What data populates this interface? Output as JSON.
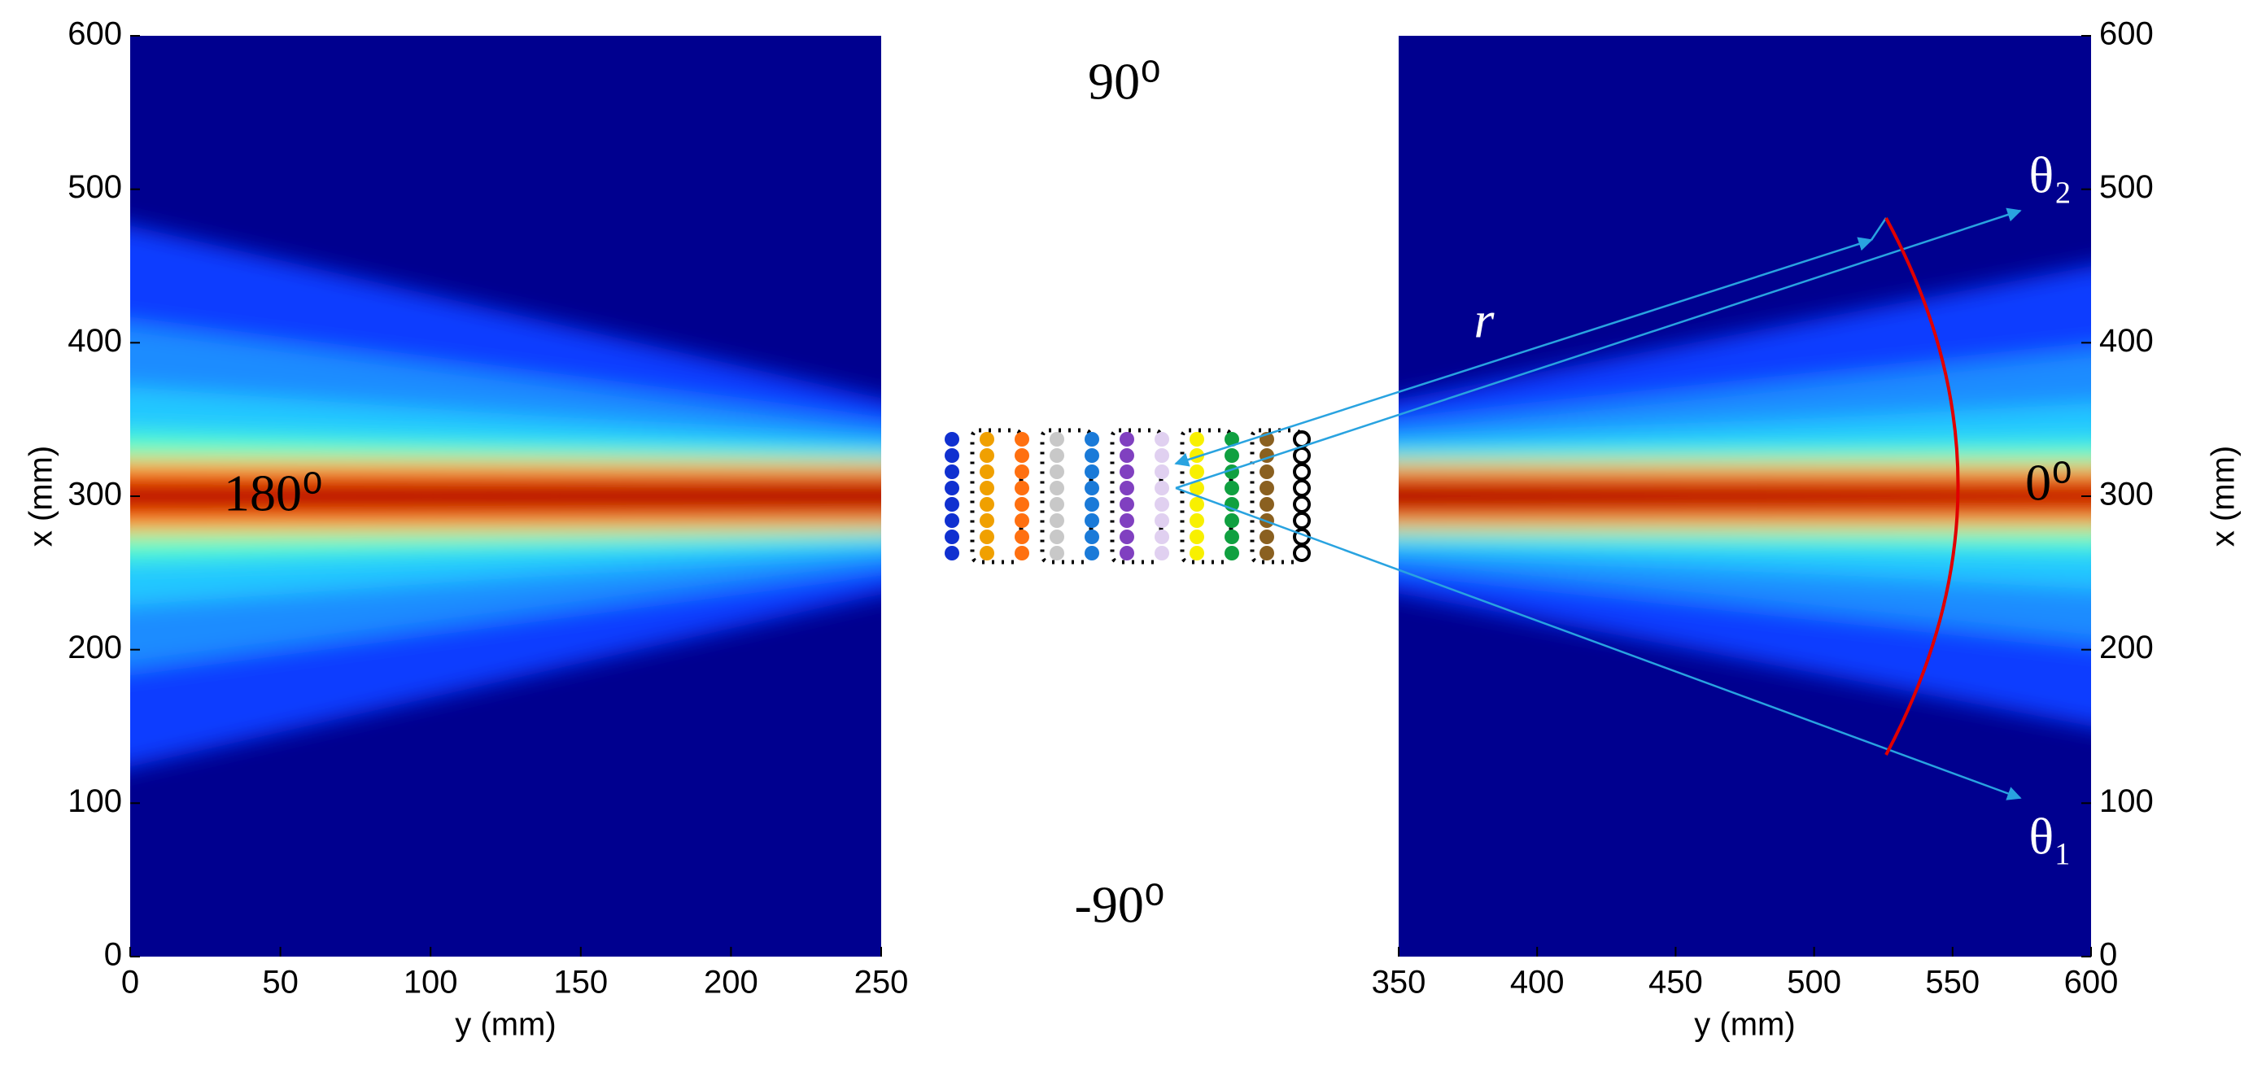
{
  "chart_data": [
    {
      "type": "heatmap",
      "xlabel": "y (mm)",
      "ylabel": "x (mm)",
      "xlim": [
        0,
        250
      ],
      "xticks": [
        0,
        50,
        100,
        150,
        200,
        250
      ],
      "ylim": [
        0,
        600
      ],
      "yticks": [
        0,
        100,
        200,
        300,
        400,
        500,
        600
      ],
      "annotations": [
        "180⁰"
      ]
    },
    {
      "type": "heatmap",
      "xlabel": "y (mm)",
      "ylabel": "x (mm)",
      "xlim": [
        350,
        600
      ],
      "xticks": [
        350,
        400,
        450,
        500,
        550,
        600
      ],
      "ylim": [
        0,
        600
      ],
      "yticks": [
        0,
        100,
        200,
        300,
        400,
        500,
        600
      ],
      "annotations": [
        "0⁰",
        "r",
        "θ₂",
        "θ₁"
      ]
    }
  ],
  "figure_labels": [
    "90⁰",
    "-90⁰"
  ]
}
